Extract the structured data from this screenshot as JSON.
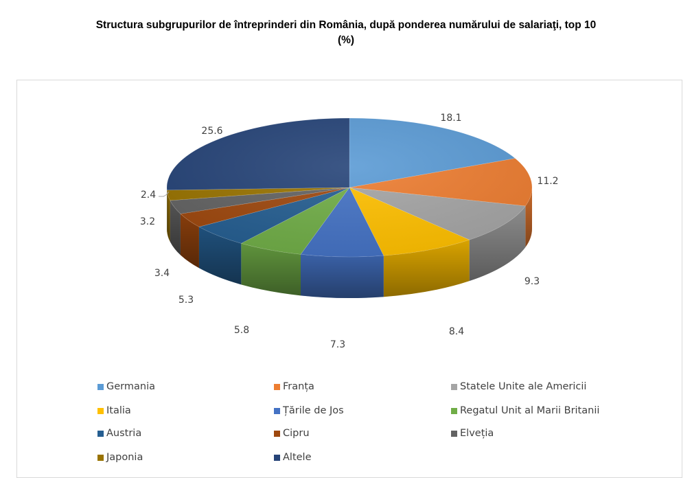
{
  "title_line1": "Structura subgrupurilor de întreprinderi din România, după ponderea numărului de salariaţi, top 10",
  "title_line2": "(%)",
  "chart_data": {
    "type": "pie",
    "style": "3d",
    "title": "Structura subgrupurilor de întreprinderi din România, după ponderea numărului de salariaţi, top 10 (%)",
    "categories": [
      "Germania",
      "Franța",
      "Statele Unite ale Americii",
      "Italia",
      "Țările de Jos",
      "Regatul Unit al Marii Britanii",
      "Austria",
      "Cipru",
      "Elveția",
      "Japonia",
      "Altele"
    ],
    "values": [
      18.1,
      11.2,
      9.3,
      8.4,
      7.3,
      5.8,
      5.3,
      3.4,
      3.2,
      2.4,
      25.6
    ],
    "labels": [
      "18.1",
      "11.2",
      "9.3",
      "8.4",
      "7.3",
      "5.8",
      "5.3",
      "3.4",
      "3.2",
      "2.4",
      "25.6"
    ],
    "colors": [
      "#5b9bd5",
      "#ed7d31",
      "#a5a5a5",
      "#ffc000",
      "#4472c4",
      "#70ad47",
      "#255e91",
      "#9e480e",
      "#636363",
      "#997300",
      "#264478"
    ],
    "legend_position": "bottom"
  }
}
